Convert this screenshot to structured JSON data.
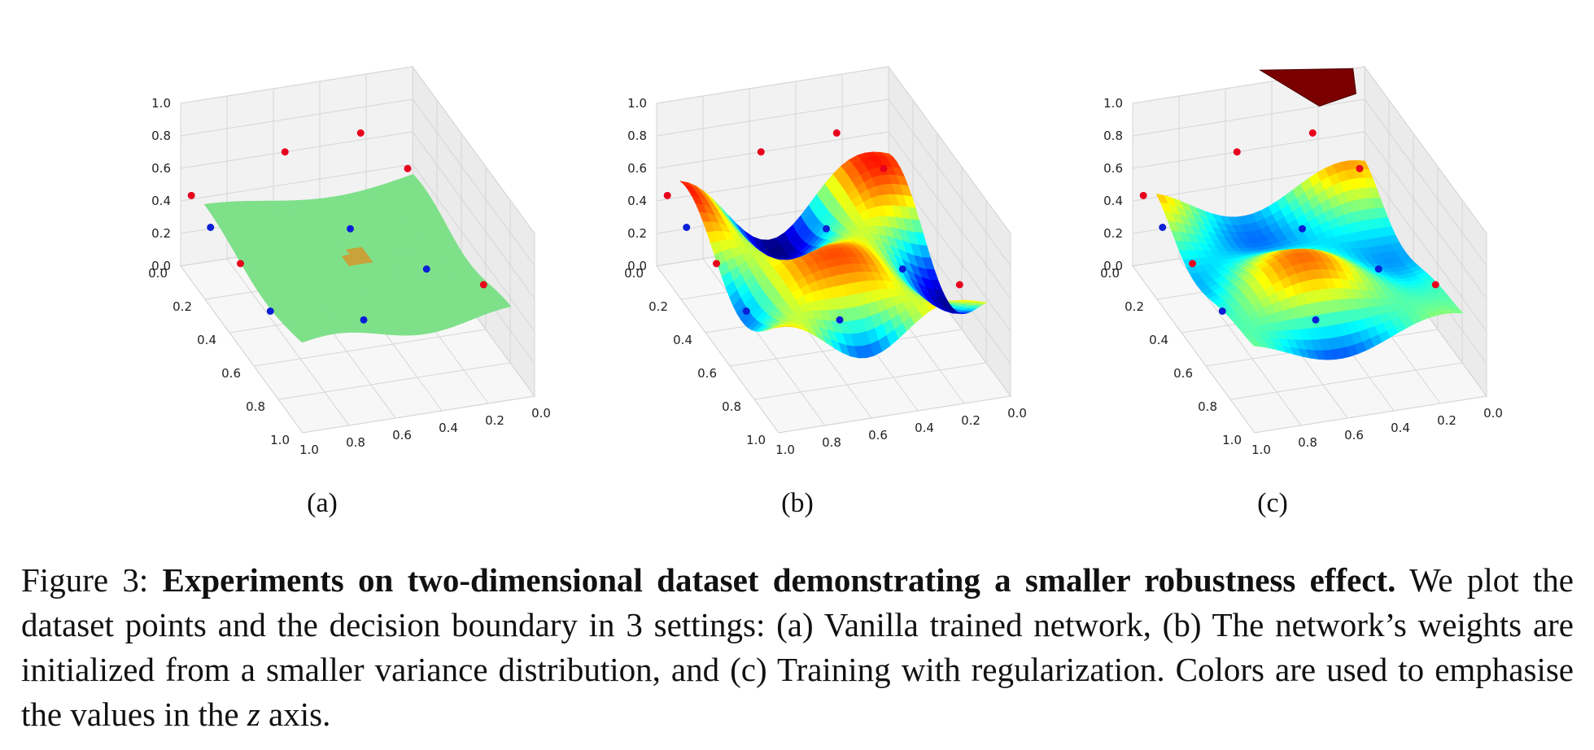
{
  "figure": {
    "subfigures": [
      {
        "label": "(a)"
      },
      {
        "label": "(b)"
      },
      {
        "label": "(c)"
      }
    ],
    "caption": {
      "prefix": "Figure 3: ",
      "bold": "Experiments on two-dimensional dataset demonstrating a smaller robustness effect.",
      "body": " We plot the dataset points and the decision boundary in 3 settings: (a) Vanilla trained network, (b) The network’s weights are initialized from a smaller variance distribution, and (c) Training with regularization. Colors are used to emphasise the values in the ",
      "var": "z",
      "suffix": " axis."
    }
  },
  "axes": {
    "z_ticks": [
      "0.0",
      "0.2",
      "0.4",
      "0.6",
      "0.8",
      "1.0"
    ],
    "x_ticks": [
      "0.0",
      "0.2",
      "0.4",
      "0.6",
      "0.8",
      "1.0"
    ],
    "y_ticks": [
      "0.0",
      "0.2",
      "0.4",
      "0.6",
      "0.8",
      "1.0"
    ]
  },
  "colors": {
    "red_points": "#e8001c",
    "blue_points": "#0a1fd6",
    "surface_a": "#7fe08a",
    "surface_c_top": "#7a0000"
  }
}
